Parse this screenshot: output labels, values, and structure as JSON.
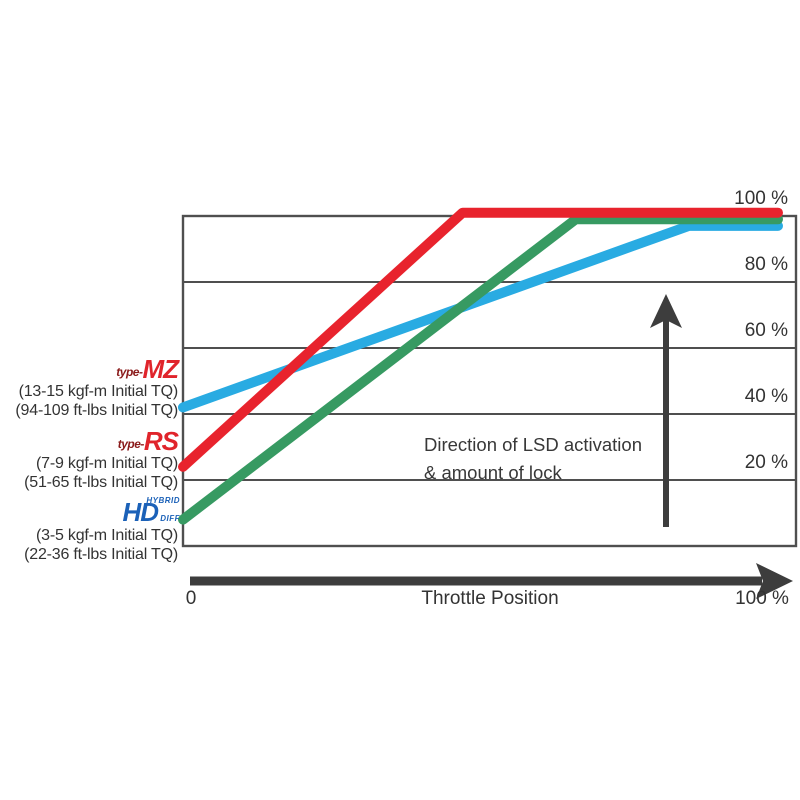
{
  "chart_data": {
    "type": "line",
    "title": "",
    "xlabel": "Throttle Position",
    "ylabel": "",
    "xlim": [
      0,
      100
    ],
    "ylim": [
      0,
      100
    ],
    "grid": "horizontal",
    "x_tick_labels": [
      "0",
      "100 %"
    ],
    "y_ticks": [
      {
        "value": 100,
        "label": "100 %"
      },
      {
        "value": 80,
        "label": "80 %"
      },
      {
        "value": 60,
        "label": "60 %"
      },
      {
        "value": 40,
        "label": "40 %"
      },
      {
        "value": 20,
        "label": "20 %"
      }
    ],
    "series": [
      {
        "id": "type-mz",
        "name": "type-MZ",
        "color": "#29ABE2",
        "points_throttle_vs_lock": [
          [
            0,
            42
          ],
          [
            85,
            97
          ],
          [
            100,
            97
          ]
        ]
      },
      {
        "id": "hd-hybrid",
        "name": "HD Hybrid Diff",
        "color": "#379A62",
        "points_throttle_vs_lock": [
          [
            0,
            8
          ],
          [
            66,
            99
          ],
          [
            100,
            99
          ]
        ]
      },
      {
        "id": "type-rs",
        "name": "type-RS",
        "color": "#E8232D",
        "points_throttle_vs_lock": [
          [
            0,
            24
          ],
          [
            47,
            101
          ],
          [
            100,
            101
          ]
        ]
      }
    ],
    "annotation": {
      "line1": "Direction of LSD activation",
      "line2": "& amount of lock"
    },
    "colors": {
      "grid": "#4F4F4F",
      "axis_arrow": "#3D3D3D",
      "text": "#333333",
      "logo_red": "#E0242B",
      "logo_red_prefix": "#8A1A1A",
      "logo_blue": "#1B61B8"
    }
  },
  "legend": {
    "items": [
      {
        "logo_prefix": "type-",
        "logo_main": "MZ",
        "logo_color": "#E0242B",
        "line1": "(13-15 kgf-m Initial TQ)",
        "line2": "(94-109 ft-lbs Initial TQ)"
      },
      {
        "logo_prefix": "type-",
        "logo_main": "RS",
        "logo_color": "#E0242B",
        "line1": "(7-9 kgf-m Initial TQ)",
        "line2": "(51-65 ft-lbs Initial TQ)"
      },
      {
        "logo_main": "HD",
        "logo_sup": "HYBRID",
        "logo_sub": "DIFF",
        "logo_color": "#1B61B8",
        "line1": "(3-5 kgf-m Initial TQ)",
        "line2": "(22-36 ft-lbs Initial TQ)"
      }
    ]
  }
}
